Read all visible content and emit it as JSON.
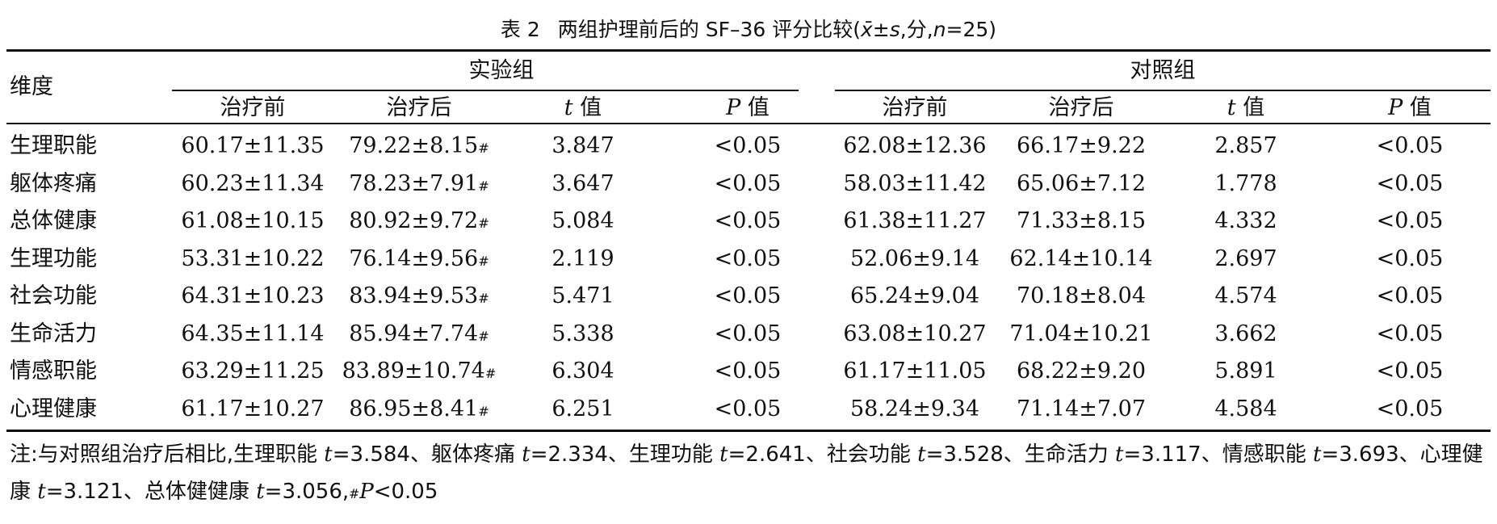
{
  "title": {
    "label": "表 2",
    "text": "两组护理前后的 SF–36 评分比较(",
    "xbar": "x̄",
    "pm": "±",
    "s": "s",
    "unit": ",分,",
    "n": "n",
    "n_val": "=25)"
  },
  "header": {
    "stub": "维度",
    "group_experimental": "实验组",
    "group_control": "对照组",
    "sub": [
      {
        "text": "治疗前",
        "italic_prefix": ""
      },
      {
        "text": "治疗后",
        "italic_prefix": ""
      },
      {
        "text": " 值",
        "italic_prefix": "t"
      },
      {
        "text": " 值",
        "italic_prefix": "P"
      },
      {
        "text": "治疗前",
        "italic_prefix": ""
      },
      {
        "text": "治疗后",
        "italic_prefix": ""
      },
      {
        "text": " 值",
        "italic_prefix": "t"
      },
      {
        "text": " 值",
        "italic_prefix": "P"
      }
    ]
  },
  "rows": [
    {
      "dim": "生理职能",
      "exp_before": "60.17±11.35",
      "exp_after": "79.22±8.15",
      "exp_mark": "#",
      "exp_t": "3.847",
      "exp_p": "<0.05",
      "ctl_before": "62.08±12.36",
      "ctl_after": "66.17±9.22",
      "ctl_t": "2.857",
      "ctl_p": "<0.05"
    },
    {
      "dim": "躯体疼痛",
      "exp_before": "60.23±11.34",
      "exp_after": "78.23±7.91",
      "exp_mark": "#",
      "exp_t": "3.647",
      "exp_p": "<0.05",
      "ctl_before": "58.03±11.42",
      "ctl_after": "65.06±7.12",
      "ctl_t": "1.778",
      "ctl_p": "<0.05"
    },
    {
      "dim": "总体健康",
      "exp_before": "61.08±10.15",
      "exp_after": "80.92±9.72",
      "exp_mark": "#",
      "exp_t": "5.084",
      "exp_p": "<0.05",
      "ctl_before": "61.38±11.27",
      "ctl_after": "71.33±8.15",
      "ctl_t": "4.332",
      "ctl_p": "<0.05"
    },
    {
      "dim": "生理功能",
      "exp_before": "53.31±10.22",
      "exp_after": "76.14±9.56",
      "exp_mark": "#",
      "exp_t": "2.119",
      "exp_p": "<0.05",
      "ctl_before": "52.06±9.14",
      "ctl_after": "62.14±10.14",
      "ctl_t": "2.697",
      "ctl_p": "<0.05"
    },
    {
      "dim": "社会功能",
      "exp_before": "64.31±10.23",
      "exp_after": "83.94±9.53",
      "exp_mark": "#",
      "exp_t": "5.471",
      "exp_p": "<0.05",
      "ctl_before": "65.24±9.04",
      "ctl_after": "70.18±8.04",
      "ctl_t": "4.574",
      "ctl_p": "<0.05"
    },
    {
      "dim": "生命活力",
      "exp_before": "64.35±11.14",
      "exp_after": "85.94±7.74",
      "exp_mark": "#",
      "exp_t": "5.338",
      "exp_p": "<0.05",
      "ctl_before": "63.08±10.27",
      "ctl_after": "71.04±10.21",
      "ctl_t": "3.662",
      "ctl_p": "<0.05"
    },
    {
      "dim": "情感职能",
      "exp_before": "63.29±11.25",
      "exp_after": "83.89±10.74",
      "exp_mark": "#",
      "exp_t": "6.304",
      "exp_p": "<0.05",
      "ctl_before": "61.17±11.05",
      "ctl_after": "68.22±9.20",
      "ctl_t": "5.891",
      "ctl_p": "<0.05"
    },
    {
      "dim": "心理健康",
      "exp_before": "61.17±10.27",
      "exp_after": "86.95±8.41",
      "exp_mark": "#",
      "exp_t": "6.251",
      "exp_p": "<0.05",
      "ctl_before": "58.24±9.34",
      "ctl_after": "71.14±7.07",
      "ctl_t": "4.584",
      "ctl_p": "<0.05"
    }
  ],
  "note": {
    "parts": [
      {
        "t": "注:与对照组治疗后相比,生理职能 ",
        "i": false
      },
      {
        "t": "t",
        "i": true
      },
      {
        "t": "=3.584、躯体疼痛 ",
        "i": false
      },
      {
        "t": "t",
        "i": true
      },
      {
        "t": "=2.334、生理功能 ",
        "i": false
      },
      {
        "t": "t",
        "i": true
      },
      {
        "t": "=2.641、社会功能 ",
        "i": false
      },
      {
        "t": "t",
        "i": true
      },
      {
        "t": "=3.528、生命活力 ",
        "i": false
      },
      {
        "t": "t",
        "i": true
      },
      {
        "t": "=3.117、情感职能 ",
        "i": false
      },
      {
        "t": "t",
        "i": true
      },
      {
        "t": "=3.693、心理健康 ",
        "i": false
      },
      {
        "t": "t",
        "i": true
      },
      {
        "t": "=3.121、总体健健康 ",
        "i": false
      },
      {
        "t": "t",
        "i": true
      },
      {
        "t": "=3.056,",
        "i": false
      },
      {
        "t": "#",
        "sup": true
      },
      {
        "t": "P",
        "i": true
      },
      {
        "t": "<0.05",
        "i": false
      }
    ]
  }
}
